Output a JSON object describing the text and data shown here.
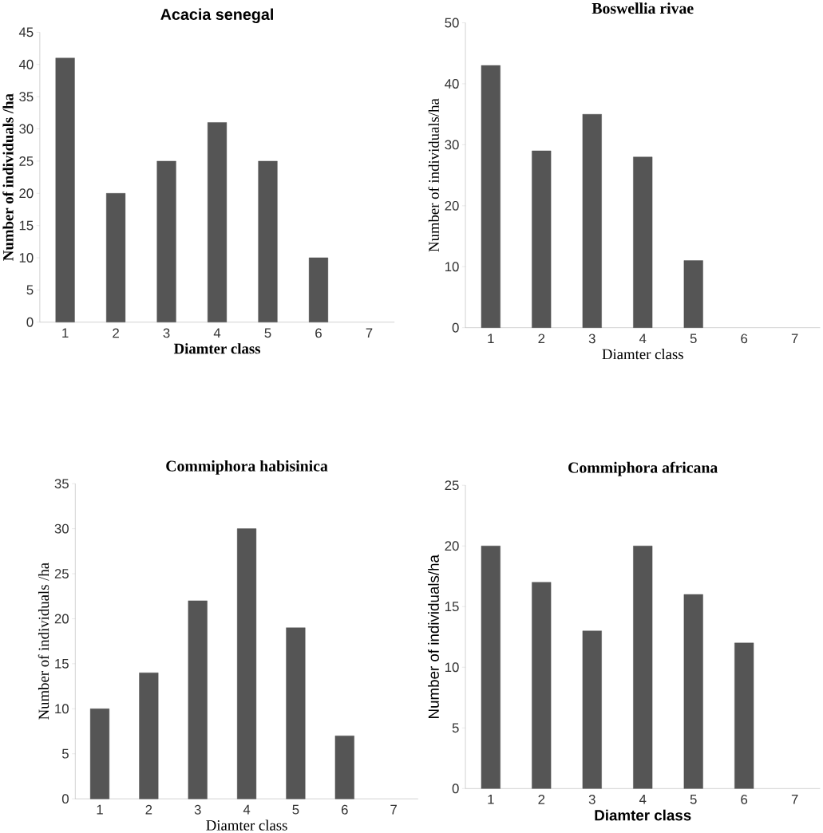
{
  "chart_data": [
    {
      "type": "bar",
      "title": "Acacia senegal",
      "xlabel": "Diamter class",
      "ylabel": "Number of individuals /ha",
      "categories": [
        "1",
        "2",
        "3",
        "4",
        "5",
        "6",
        "7"
      ],
      "values": [
        41,
        20,
        25,
        31,
        25,
        10,
        null
      ],
      "color": "#555555",
      "ylim": [
        0,
        45
      ],
      "yticks": [
        0,
        5,
        10,
        15,
        20,
        25,
        30,
        35,
        40,
        45
      ]
    },
    {
      "type": "bar",
      "title": "Boswellia rivae",
      "xlabel": "Diamter class",
      "ylabel": "Number of individuals/ha",
      "categories": [
        "1",
        "2",
        "3",
        "4",
        "5",
        "6",
        "7"
      ],
      "values": [
        43,
        29,
        35,
        28,
        11,
        null,
        null
      ],
      "color": "#555555",
      "ylim": [
        0,
        50
      ],
      "yticks": [
        0,
        10,
        20,
        30,
        40,
        50
      ]
    },
    {
      "type": "bar",
      "title": "Commiphora habisinica",
      "xlabel": "Diamter class",
      "ylabel": "Number of individuals /ha",
      "categories": [
        "1",
        "2",
        "3",
        "4",
        "5",
        "6",
        "7"
      ],
      "values": [
        10,
        14,
        22,
        30,
        19,
        7,
        null
      ],
      "color": "#555555",
      "ylim": [
        0,
        35
      ],
      "yticks": [
        0,
        5,
        10,
        15,
        20,
        25,
        30,
        35
      ]
    },
    {
      "type": "bar",
      "title": "Commiphora africana",
      "xlabel": "Diamter class",
      "ylabel": "Number of individuals/ha",
      "categories": [
        "1",
        "2",
        "3",
        "4",
        "5",
        "6",
        "7"
      ],
      "values": [
        20,
        17,
        13,
        20,
        16,
        12,
        null
      ],
      "color": "#555555",
      "ylim": [
        0,
        25
      ],
      "yticks": [
        0,
        5,
        10,
        15,
        20,
        25
      ]
    }
  ]
}
